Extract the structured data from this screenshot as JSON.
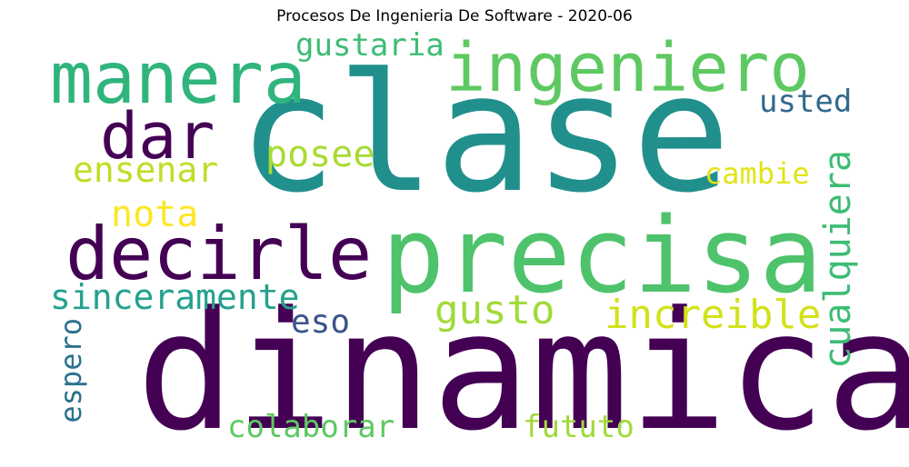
{
  "title": "Procesos De Ingenieria De Software - 2020-06",
  "words": [
    {
      "text": "clase",
      "color": "#21908d"
    },
    {
      "text": "dinamica",
      "color": "#440154"
    },
    {
      "text": "precisa",
      "color": "#4ec36b"
    },
    {
      "text": "ingeniero",
      "color": "#5ec962"
    },
    {
      "text": "manera",
      "color": "#2fb47c"
    },
    {
      "text": "decirle",
      "color": "#440154"
    },
    {
      "text": "dar",
      "color": "#440154"
    },
    {
      "text": "sinceramente",
      "color": "#25a18e"
    },
    {
      "text": "gustaria",
      "color": "#3dbc74"
    },
    {
      "text": "ensenar",
      "color": "#bddf26"
    },
    {
      "text": "posee",
      "color": "#a8db34"
    },
    {
      "text": "nota",
      "color": "#fde725"
    },
    {
      "text": "usted",
      "color": "#31688e"
    },
    {
      "text": "cambie",
      "color": "#e2e418"
    },
    {
      "text": "cualquiera",
      "color": "#3dbc74"
    },
    {
      "text": "gusto",
      "color": "#a0da39"
    },
    {
      "text": "increible",
      "color": "#d2e21b"
    },
    {
      "text": "eso",
      "color": "#3b528b"
    },
    {
      "text": "espero",
      "color": "#2c728e"
    },
    {
      "text": "colaborar",
      "color": "#5ec962"
    },
    {
      "text": "fututo",
      "color": "#a0da39"
    }
  ]
}
